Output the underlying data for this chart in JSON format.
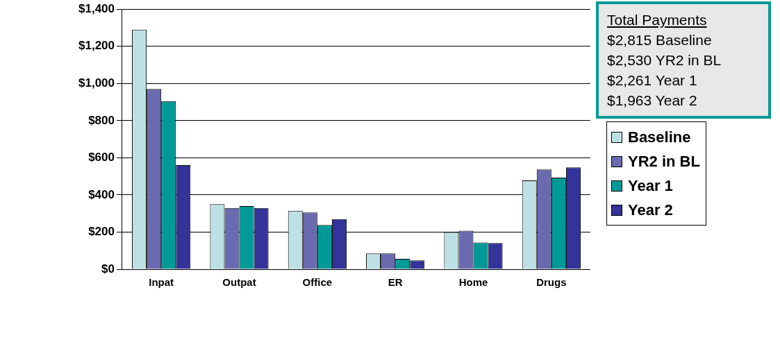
{
  "chart_data": {
    "type": "bar",
    "categories": [
      "Inpat",
      "Outpat",
      "Office",
      "ER",
      "Home",
      "Drugs"
    ],
    "series": [
      {
        "name": "Baseline",
        "color": "#bde0e4",
        "values": [
          1290,
          350,
          315,
          85,
          200,
          478
        ]
      },
      {
        "name": "YR2 in BL",
        "color": "#6a6ab0",
        "values": [
          970,
          330,
          305,
          85,
          207,
          537
        ]
      },
      {
        "name": "Year 1",
        "color": "#009a96",
        "values": [
          905,
          340,
          238,
          56,
          144,
          493
        ]
      },
      {
        "name": "Year 2",
        "color": "#333399",
        "values": [
          560,
          330,
          270,
          48,
          141,
          548
        ]
      }
    ],
    "ylim": [
      0,
      1400
    ],
    "yticks": [
      {
        "value": 0,
        "label": "$0"
      },
      {
        "value": 200,
        "label": "$200"
      },
      {
        "value": 400,
        "label": "$400"
      },
      {
        "value": 600,
        "label": "$600"
      },
      {
        "value": 800,
        "label": "$800"
      },
      {
        "value": 1000,
        "label": "$1,000"
      },
      {
        "value": 1200,
        "label": "$1,200"
      },
      {
        "value": 1400,
        "label": "$1,400"
      }
    ],
    "grid": "y",
    "legend": "right",
    "annotations": [
      "Total Payments",
      "$2,815 Baseline",
      "$2,530 YR2 in BL",
      "$2,261 Year 1",
      "$1,963 Year 2"
    ]
  }
}
